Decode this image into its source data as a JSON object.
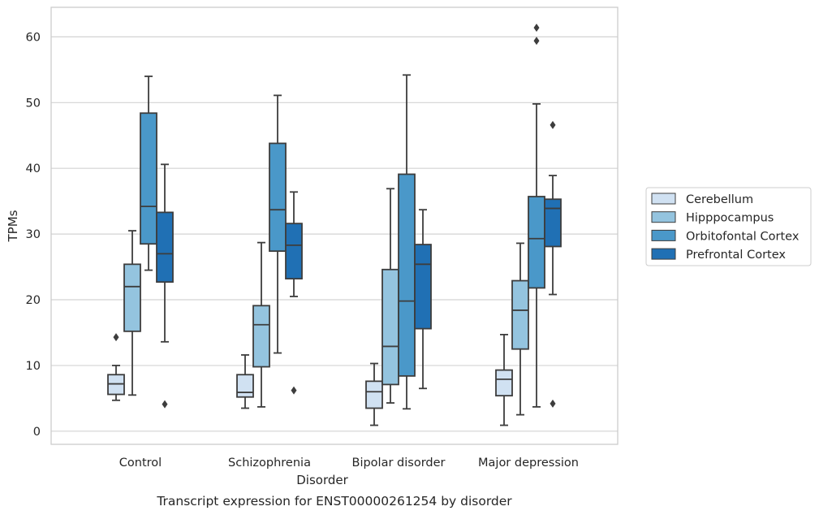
{
  "caption": "Transcript expression for ENST00000261254 by disorder",
  "chart_data": {
    "type": "boxplot",
    "xlabel": "Disorder",
    "ylabel": "TPMs",
    "ylim": [
      -2,
      64.5
    ],
    "yticks": [
      0,
      10,
      20,
      30,
      40,
      50,
      60
    ],
    "grid": "horizontal",
    "legend_placement": "right",
    "categories": [
      "Control",
      "Schizophrenia",
      "Bipolar disorder",
      "Major depression"
    ],
    "series": [
      {
        "name": "Cerebellum",
        "color": "#d0e1f2",
        "boxes": [
          {
            "whisker_low": 4.7,
            "q1": 5.6,
            "median": 7.2,
            "q3": 8.6,
            "whisker_high": 10.0,
            "outliers": [
              14.3
            ]
          },
          {
            "whisker_low": 3.5,
            "q1": 5.2,
            "median": 5.9,
            "q3": 8.6,
            "whisker_high": 11.6,
            "outliers": []
          },
          {
            "whisker_low": 0.9,
            "q1": 3.5,
            "median": 6.0,
            "q3": 7.6,
            "whisker_high": 10.3,
            "outliers": []
          },
          {
            "whisker_low": 0.9,
            "q1": 5.4,
            "median": 7.9,
            "q3": 9.3,
            "whisker_high": 14.7,
            "outliers": []
          }
        ]
      },
      {
        "name": "Hipppocampus",
        "color": "#94c4df",
        "boxes": [
          {
            "whisker_low": 5.5,
            "q1": 15.2,
            "median": 22.0,
            "q3": 25.4,
            "whisker_high": 30.5,
            "outliers": []
          },
          {
            "whisker_low": 3.7,
            "q1": 9.8,
            "median": 16.2,
            "q3": 19.1,
            "whisker_high": 28.7,
            "outliers": []
          },
          {
            "whisker_low": 4.3,
            "q1": 7.1,
            "median": 12.9,
            "q3": 24.6,
            "whisker_high": 36.9,
            "outliers": []
          },
          {
            "whisker_low": 2.5,
            "q1": 12.5,
            "median": 18.4,
            "q3": 22.9,
            "whisker_high": 28.6,
            "outliers": []
          }
        ]
      },
      {
        "name": "Orbitofontal Cortex",
        "color": "#4a98c9",
        "boxes": [
          {
            "whisker_low": 24.5,
            "q1": 28.5,
            "median": 34.2,
            "q3": 48.4,
            "whisker_high": 54.0,
            "outliers": []
          },
          {
            "whisker_low": 11.9,
            "q1": 27.4,
            "median": 33.7,
            "q3": 43.8,
            "whisker_high": 51.1,
            "outliers": []
          },
          {
            "whisker_low": 3.4,
            "q1": 8.4,
            "median": 19.8,
            "q3": 39.1,
            "whisker_high": 54.2,
            "outliers": []
          },
          {
            "whisker_low": 3.7,
            "q1": 21.8,
            "median": 29.3,
            "q3": 35.7,
            "whisker_high": 49.8,
            "outliers": [
              59.4,
              61.4
            ]
          }
        ]
      },
      {
        "name": "Prefrontal Cortex",
        "color": "#2070b4",
        "boxes": [
          {
            "whisker_low": 13.6,
            "q1": 22.7,
            "median": 27.0,
            "q3": 33.3,
            "whisker_high": 40.6,
            "outliers": [
              4.1
            ]
          },
          {
            "whisker_low": 20.5,
            "q1": 23.2,
            "median": 28.3,
            "q3": 31.6,
            "whisker_high": 36.4,
            "outliers": [
              6.2
            ]
          },
          {
            "whisker_low": 6.5,
            "q1": 15.6,
            "median": 25.4,
            "q3": 28.4,
            "whisker_high": 33.7,
            "outliers": []
          },
          {
            "whisker_low": 20.8,
            "q1": 28.1,
            "median": 33.9,
            "q3": 35.3,
            "whisker_high": 38.9,
            "outliers": [
              4.2,
              46.6
            ]
          }
        ]
      }
    ]
  }
}
